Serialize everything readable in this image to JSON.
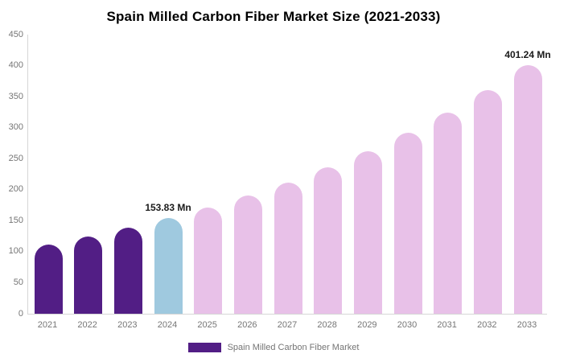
{
  "title": "Spain Milled Carbon Fiber Market Size (2021-2033)",
  "legend": {
    "label": "Spain Milled Carbon Fiber Market",
    "swatch_color": "#521e85"
  },
  "colors": {
    "historical_bar": "#521e85",
    "current_year_bar": "#9fc9df",
    "forecast_bar": "#e8c1e8",
    "axis_line": "#d6d6d6",
    "tick_text": "#757575",
    "annotation_text": "#1a1a1a",
    "title_text": "#000000"
  },
  "chart_data": {
    "type": "bar",
    "title": "Spain Milled Carbon Fiber Market Size (2021-2033)",
    "categories": [
      "2021",
      "2022",
      "2023",
      "2024",
      "2025",
      "2026",
      "2027",
      "2028",
      "2029",
      "2030",
      "2031",
      "2032",
      "2033"
    ],
    "values": [
      111.75,
      124.31,
      138.28,
      153.83,
      171.12,
      190.36,
      211.76,
      235.57,
      262.05,
      291.51,
      324.29,
      360.75,
      401.24
    ],
    "unit": "Mn",
    "xlabel": "",
    "ylabel": "",
    "ylim": [
      0,
      450
    ],
    "yticks": [
      0,
      50,
      100,
      150,
      200,
      250,
      300,
      350,
      400,
      450
    ],
    "grid": false,
    "legend_position": "bottom",
    "legend_entries": [
      "Spain Milled Carbon Fiber Market"
    ],
    "bar_colors": [
      "#521e85",
      "#521e85",
      "#521e85",
      "#9fc9df",
      "#e8c1e8",
      "#e8c1e8",
      "#e8c1e8",
      "#e8c1e8",
      "#e8c1e8",
      "#e8c1e8",
      "#e8c1e8",
      "#e8c1e8",
      "#e8c1e8"
    ],
    "annotations": [
      {
        "category": "2024",
        "text": "153.83 Mn"
      },
      {
        "category": "2033",
        "text": "401.24 Mn"
      }
    ]
  }
}
